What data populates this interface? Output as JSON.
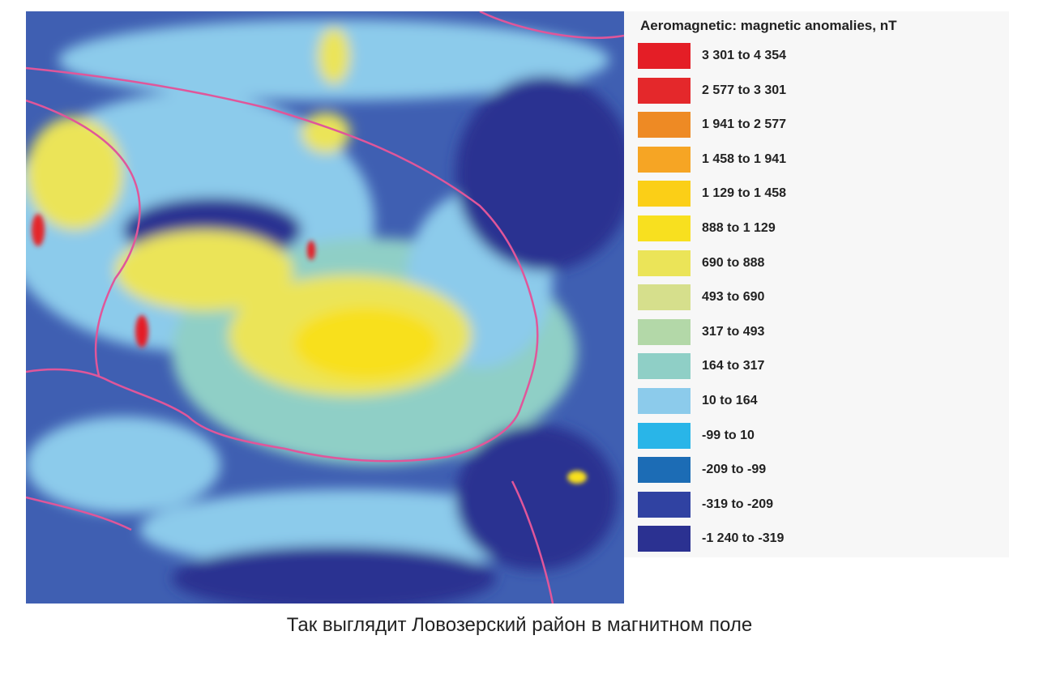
{
  "legend": {
    "title": "Aeromagnetic: magnetic anomalies, nT",
    "items": [
      {
        "label": "3 301 to 4 354",
        "color": "#e41e26"
      },
      {
        "label": "2 577 to 3 301",
        "color": "#e4282b"
      },
      {
        "label": "1 941 to 2 577",
        "color": "#ee8a24"
      },
      {
        "label": "1 458 to 1 941",
        "color": "#f6a524"
      },
      {
        "label": "1 129 to 1 458",
        "color": "#fbcf17"
      },
      {
        "label": "888 to 1 129",
        "color": "#f8e01f"
      },
      {
        "label": "690 to 888",
        "color": "#ebe458"
      },
      {
        "label": "493 to 690",
        "color": "#d6df8c"
      },
      {
        "label": "317 to 493",
        "color": "#b3d8a8"
      },
      {
        "label": "164 to 317",
        "color": "#8fcfc6"
      },
      {
        "label": "10 to 164",
        "color": "#8ccbeb"
      },
      {
        "label": "-99 to 10",
        "color": "#29b5e8"
      },
      {
        "label": "-209 to -99",
        "color": "#1c6cb5"
      },
      {
        "label": "-319 to -209",
        "color": "#3042a2"
      },
      {
        "label": "-1 240 to -319",
        "color": "#2b3191"
      }
    ]
  },
  "caption": "Так выглядит Ловозерский район в магнитном поле"
}
